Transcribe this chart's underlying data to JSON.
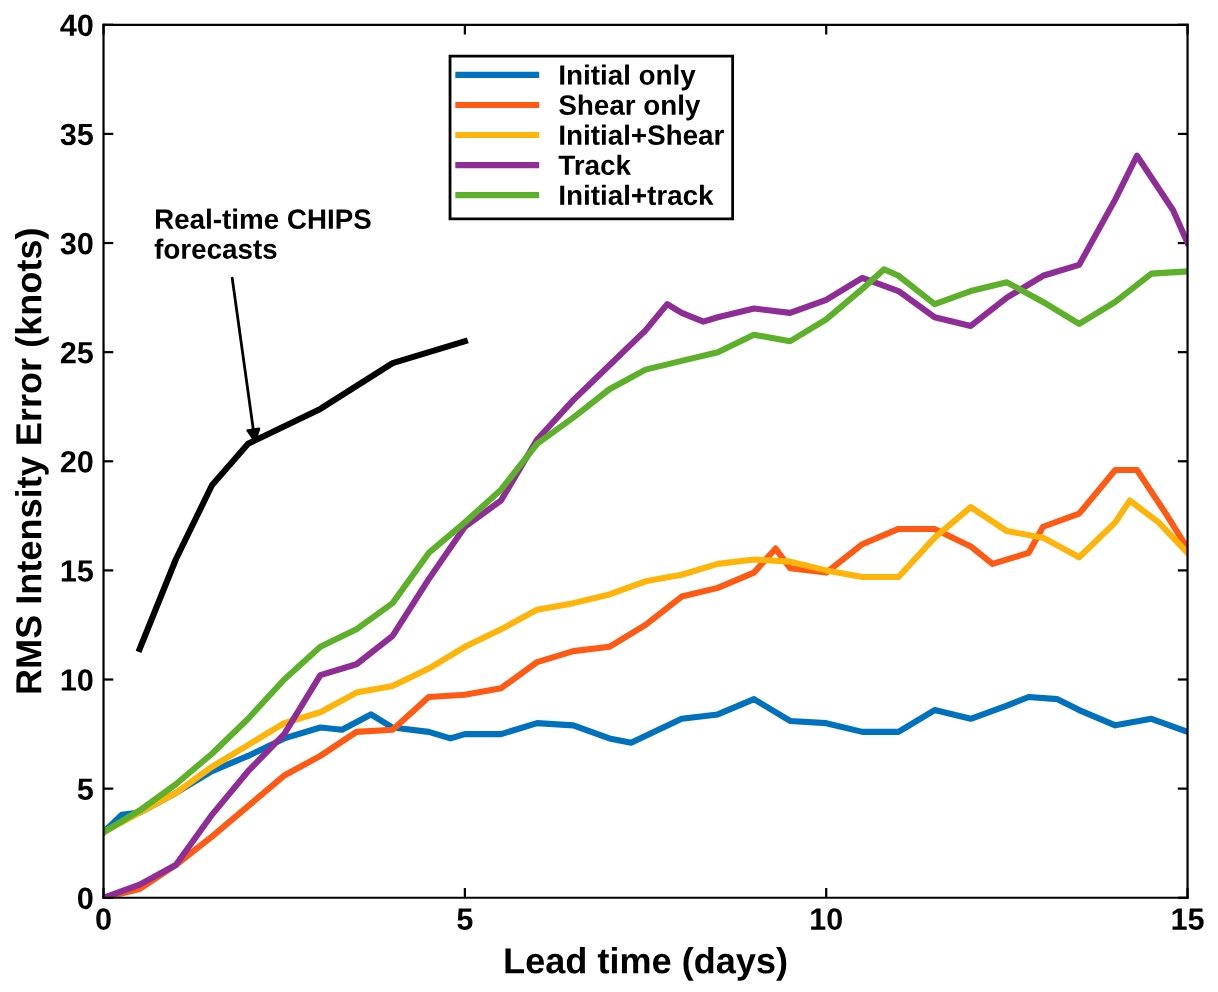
{
  "chart_data": {
    "type": "line",
    "xlabel": "Lead time (days)",
    "ylabel": "RMS Intensity Error (knots)",
    "xlim": [
      0,
      15
    ],
    "ylim": [
      0,
      40
    ],
    "xticks": [
      0,
      5,
      10,
      15
    ],
    "yticks": [
      0,
      5,
      10,
      15,
      20,
      25,
      30,
      35,
      40
    ],
    "grid": false,
    "legend": "top",
    "line_style": "solid",
    "marker": "none",
    "series": [
      {
        "name": "Initial only",
        "color": "#0072bd",
        "x": [
          0,
          0.25,
          0.5,
          1,
          1.5,
          2,
          2.5,
          3,
          3.3,
          3.7,
          4,
          4.5,
          4.8,
          5,
          5.5,
          6,
          6.5,
          7,
          7.3,
          8,
          8.5,
          9,
          9.5,
          10,
          10.5,
          11,
          11.5,
          12,
          12.5,
          12.8,
          13.2,
          13.5,
          14,
          14.5,
          15
        ],
        "values": [
          3,
          3.8,
          3.9,
          4.8,
          5.8,
          6.5,
          7.3,
          7.8,
          7.7,
          8.4,
          7.8,
          7.6,
          7.3,
          7.5,
          7.5,
          8,
          7.9,
          7.3,
          7.1,
          8.2,
          8.4,
          9.1,
          8.1,
          8,
          7.6,
          7.6,
          8.6,
          8.2,
          8.8,
          9.2,
          9.1,
          8.6,
          7.9,
          8.2,
          7.6
        ]
      },
      {
        "name": "Shear only",
        "color": "#ff5a14",
        "x": [
          0,
          0.5,
          1,
          1.5,
          2,
          2.5,
          3,
          3.5,
          4,
          4.5,
          5,
          5.5,
          6,
          6.5,
          7,
          7.5,
          8,
          8.5,
          9,
          9.3,
          9.5,
          10,
          10.5,
          11,
          11.5,
          12,
          12.3,
          12.8,
          13,
          13.5,
          14,
          14.3,
          14.7,
          15
        ],
        "values": [
          0,
          0.4,
          1.5,
          2.8,
          4.2,
          5.6,
          6.5,
          7.6,
          7.7,
          9.2,
          9.3,
          9.6,
          10.8,
          11.3,
          11.5,
          12.5,
          13.8,
          14.2,
          14.9,
          16,
          15.1,
          14.9,
          16.2,
          16.9,
          16.9,
          16.1,
          15.3,
          15.8,
          17,
          17.6,
          19.6,
          19.6,
          17.6,
          16
        ]
      },
      {
        "name": "Initial+Shear",
        "color": "#ffb40a",
        "x": [
          0,
          0.5,
          1,
          1.5,
          2,
          2.5,
          3,
          3.5,
          4,
          4.5,
          5,
          5.5,
          6,
          6.5,
          7,
          7.5,
          8,
          8.5,
          9,
          9.5,
          10,
          10.5,
          11,
          11.5,
          12,
          12.5,
          13,
          13.5,
          14,
          14.2,
          14.6,
          15
        ],
        "values": [
          3,
          3.9,
          4.8,
          6,
          7,
          8,
          8.5,
          9.4,
          9.7,
          10.5,
          11.5,
          12.3,
          13.2,
          13.5,
          13.9,
          14.5,
          14.8,
          15.3,
          15.5,
          15.4,
          15,
          14.7,
          14.7,
          16.5,
          17.9,
          16.8,
          16.5,
          15.6,
          17.2,
          18.2,
          17.2,
          15.8
        ]
      },
      {
        "name": "Track",
        "color": "#8e2d96",
        "x": [
          0,
          0.5,
          1,
          1.5,
          2,
          2.5,
          3,
          3.5,
          4,
          4.5,
          5,
          5.5,
          6,
          6.5,
          7,
          7.5,
          7.8,
          8,
          8.3,
          8.5,
          9,
          9.5,
          10,
          10.5,
          11,
          11.5,
          12,
          12.5,
          13,
          13.5,
          14,
          14.3,
          14.8,
          15
        ],
        "values": [
          0,
          0.6,
          1.5,
          3.8,
          5.8,
          7.5,
          10.2,
          10.7,
          12,
          14.6,
          17,
          18.2,
          21,
          22.8,
          24.4,
          26,
          27.2,
          26.8,
          26.4,
          26.6,
          27,
          26.8,
          27.4,
          28.4,
          27.8,
          26.6,
          26.2,
          27.5,
          28.5,
          29,
          32,
          34,
          31.5,
          30
        ]
      },
      {
        "name": "Initial+track",
        "color": "#5db12a",
        "x": [
          0,
          0.5,
          1,
          1.5,
          2,
          2.5,
          3,
          3.5,
          4,
          4.5,
          5,
          5.5,
          6,
          6.5,
          7,
          7.5,
          8,
          8.5,
          9,
          9.5,
          10,
          10.5,
          10.8,
          11,
          11.5,
          12,
          12.5,
          13,
          13.5,
          14,
          14.5,
          15
        ],
        "values": [
          3,
          4,
          5.2,
          6.6,
          8.2,
          10,
          11.5,
          12.3,
          13.5,
          15.8,
          17.2,
          18.7,
          20.8,
          22,
          23.3,
          24.2,
          24.6,
          25,
          25.8,
          25.5,
          26.5,
          27.9,
          28.8,
          28.5,
          27.2,
          27.8,
          28.2,
          27.3,
          26.3,
          27.3,
          28.6,
          28.7
        ]
      },
      {
        "color": "#000000",
        "x": [
          0.5,
          1,
          1.5,
          2,
          3,
          4,
          5
        ],
        "values": [
          11.4,
          15.5,
          18.9,
          20.8,
          22.4,
          24.5,
          25.5
        ]
      }
    ],
    "annotations": [
      {
        "text": "Real-time CHIPS\nforecasts",
        "x": 2.1,
        "y": 20.8
      }
    ]
  }
}
